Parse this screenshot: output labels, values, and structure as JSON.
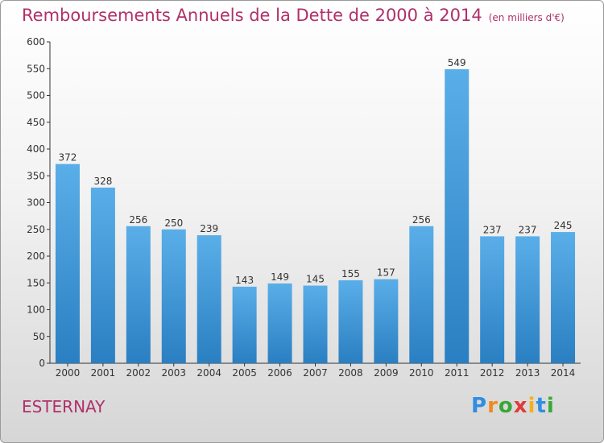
{
  "title": "Remboursements Annuels de la Dette de 2000 à 2014",
  "unit_note": "(en milliers d'€)",
  "location": "ESTERNAY",
  "logo": {
    "letters": [
      "P",
      "r",
      "o",
      "x",
      "i",
      "t",
      "i"
    ],
    "colors": [
      "#2f8ee0",
      "#f08a1c",
      "#3aa63a",
      "#e23a3a",
      "#f0b21c",
      "#2f8ee0",
      "#3aa63a"
    ]
  },
  "colors": {
    "bar_top": "#5aaee8",
    "bar_bottom": "#2a7fc2",
    "title": "#b0306a"
  },
  "chart_data": {
    "type": "bar",
    "categories": [
      "2000",
      "2001",
      "2002",
      "2003",
      "2004",
      "2005",
      "2006",
      "2007",
      "2008",
      "2009",
      "2010",
      "2011",
      "2012",
      "2013",
      "2014"
    ],
    "values": [
      372,
      328,
      256,
      250,
      239,
      143,
      149,
      145,
      155,
      157,
      256,
      549,
      237,
      237,
      245
    ],
    "ylim": [
      0,
      600
    ],
    "yticks": [
      0,
      50,
      100,
      150,
      200,
      250,
      300,
      350,
      400,
      450,
      500,
      550,
      600
    ],
    "grid": false
  }
}
